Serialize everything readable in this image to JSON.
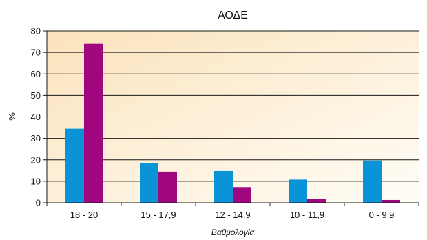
{
  "chart_data": {
    "type": "bar",
    "title": "ΑΟΔΕ",
    "xlabel": "Βαθμολογία",
    "ylabel": "%",
    "categories": [
      "18 - 20",
      "15 - 17,9",
      "12 - 14,9",
      "10 - 11,9",
      "0 - 9,9"
    ],
    "series": [
      {
        "color": "#0a93d6",
        "values": [
          34.5,
          18.5,
          14.8,
          10.8,
          19.7
        ]
      },
      {
        "color": "#a0077e",
        "values": [
          74,
          14.5,
          7.3,
          1.8,
          1.3
        ]
      }
    ],
    "ylim": [
      0,
      80
    ],
    "yticks": [
      0,
      10,
      20,
      30,
      40,
      50,
      60,
      70,
      80
    ],
    "grid": true,
    "legend": "none",
    "background_gradient": [
      "#fbe3bc",
      "#fffdf7"
    ]
  }
}
